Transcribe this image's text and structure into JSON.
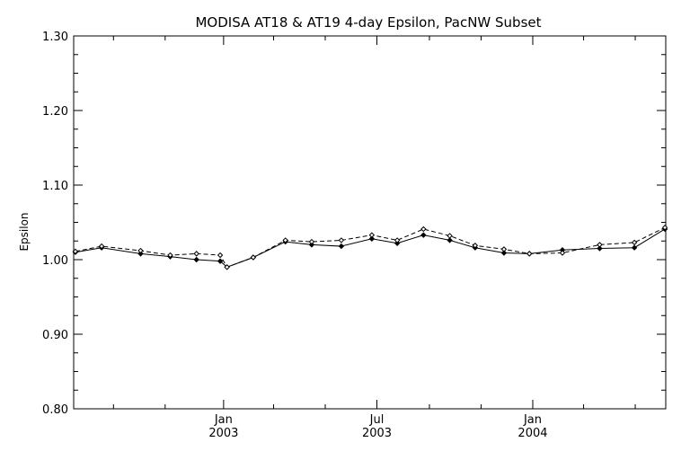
{
  "chart_data": {
    "type": "line",
    "title": "MODISA AT18 & AT19 4-day Epsilon, PacNW Subset",
    "xlabel": "",
    "ylabel": "Epsilon",
    "ylim": [
      0.8,
      1.3
    ],
    "y_ticks": [
      0.8,
      0.9,
      1.0,
      1.1,
      1.2,
      1.3
    ],
    "y_tick_labels": [
      "0.80",
      "0.90",
      "1.00",
      "1.10",
      "1.20",
      "1.30"
    ],
    "xlim": [
      "2002-07-08",
      "2004-06-06"
    ],
    "x_major_ticks": [
      {
        "date": "2003-01-01",
        "month": "Jan",
        "year": "2003"
      },
      {
        "date": "2003-07-01",
        "month": "Jul",
        "year": "2003"
      },
      {
        "date": "2004-01-01",
        "month": "Jan",
        "year": "2004"
      }
    ],
    "x_minor_ticks": [
      "2002-08-24",
      "2002-10-24",
      "2003-03-01",
      "2003-05-01",
      "2003-09-01",
      "2003-11-01",
      "2004-03-01",
      "2004-05-01"
    ],
    "grid": false,
    "legend": "none",
    "x": [
      "2002-07-10",
      "2002-08-10",
      "2002-09-25",
      "2002-10-30",
      "2002-11-30",
      "2002-12-28",
      "2003-01-05",
      "2003-02-05",
      "2003-03-15",
      "2003-04-15",
      "2003-05-20",
      "2003-06-25",
      "2003-07-25",
      "2003-08-25",
      "2003-09-25",
      "2003-10-25",
      "2003-11-28",
      "2003-12-28",
      "2004-02-05",
      "2004-03-20",
      "2004-04-30",
      "2004-06-05"
    ],
    "series": [
      {
        "style": "solid",
        "values": [
          1.01,
          1.016,
          1.008,
          1.004,
          1.0,
          0.998,
          0.99,
          1.003,
          1.024,
          1.02,
          1.018,
          1.028,
          1.022,
          1.033,
          1.026,
          1.016,
          1.009,
          1.008,
          1.013,
          1.015,
          1.016,
          1.041
        ]
      },
      {
        "style": "dashed",
        "values": [
          1.011,
          1.018,
          1.012,
          1.006,
          1.008,
          1.006,
          0.99,
          1.003,
          1.026,
          1.024,
          1.026,
          1.033,
          1.026,
          1.041,
          1.032,
          1.019,
          1.014,
          1.008,
          1.009,
          1.02,
          1.023,
          1.043
        ]
      }
    ]
  }
}
